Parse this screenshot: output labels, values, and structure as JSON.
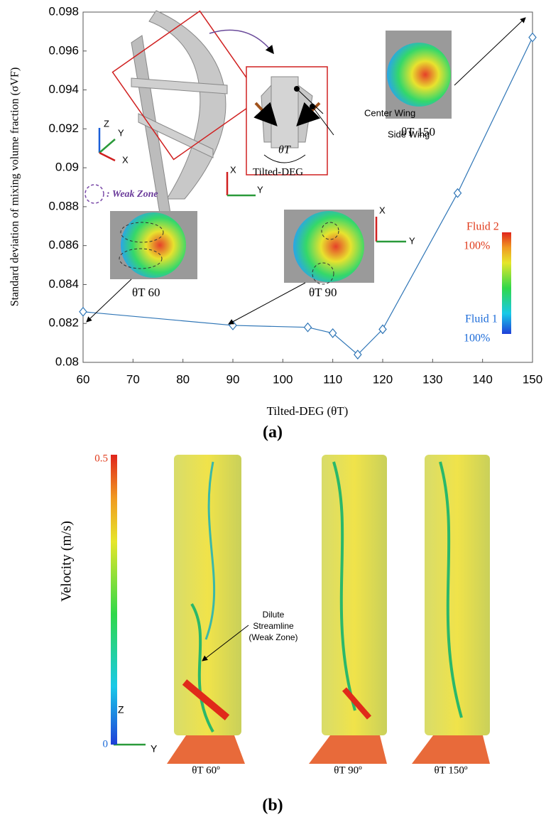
{
  "chart_data": {
    "type": "line",
    "y_label": "Standard deviation of mixing volume fraction (σVF)",
    "x_label": "Tilted-DEG (θT)",
    "caption": "(a)",
    "x": [
      60,
      90,
      105,
      110,
      115,
      120,
      135,
      150
    ],
    "series": [
      {
        "color": "#2e75b6",
        "values": [
          0.0826,
          0.0819,
          0.0818,
          0.0815,
          0.0804,
          0.0817,
          0.0887,
          0.0967
        ]
      }
    ],
    "xlim": [
      60,
      150
    ],
    "xticks": [
      60,
      70,
      80,
      90,
      100,
      110,
      120,
      130,
      140,
      150
    ],
    "ylim": [
      0.08,
      0.098
    ],
    "yticks": [
      0.08,
      0.082,
      0.084,
      0.086,
      0.088,
      0.09,
      0.092,
      0.094,
      0.096,
      0.098
    ],
    "annotations": [
      "Center Wing",
      "Side Wing",
      "θT",
      "Tilted-DEG",
      "θT 150",
      "θT 60",
      "θT 90",
      "Fluid 2",
      "100%",
      "Fluid 1",
      "100%",
      ": Weak Zone",
      "Z",
      "Y",
      "X",
      "X",
      "Y",
      "X",
      "Y"
    ]
  },
  "panel_b": {
    "colorbar_label": "Velocity (m/s)",
    "colorbar_range": [
      0,
      0.5
    ],
    "note": [
      "Dilute",
      "Streamline",
      "(Weak Zone)"
    ],
    "captions": [
      "θT 60º",
      "θT 90º",
      "θT 150º"
    ],
    "axes": [
      "Z",
      "Y"
    ],
    "caption": "(b)"
  }
}
